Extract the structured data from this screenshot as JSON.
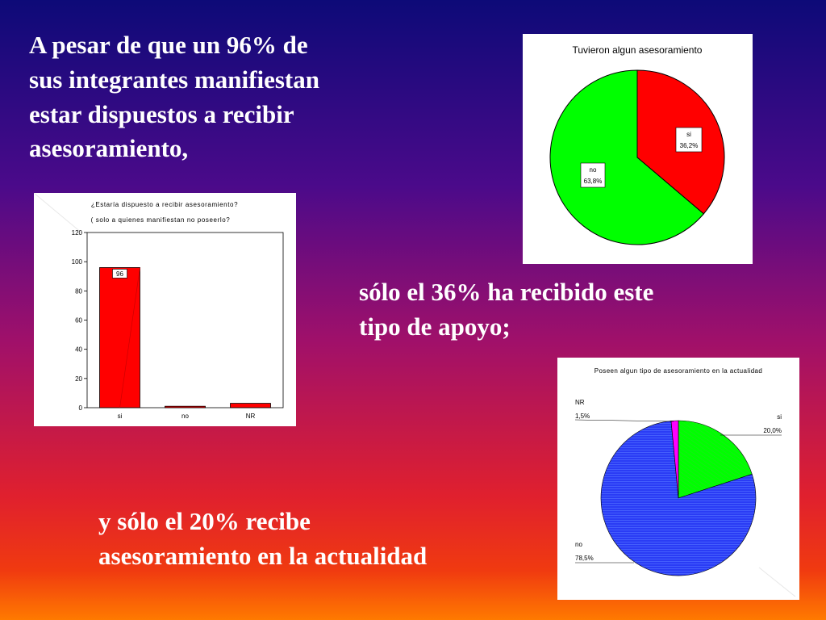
{
  "text_blocks": {
    "block1": [
      "A pesar de que un 96% de",
      "sus integrantes manifiestan",
      "estar dispuestos a recibir",
      "asesoramiento,"
    ],
    "block2": [
      "sólo el 36% ha recibido este",
      "tipo de apoyo;"
    ],
    "block3": [
      "y sólo el 20% recibe",
      "asesoramiento en la actualidad"
    ]
  },
  "colors": {
    "red": "#ff0000",
    "green": "#00ff00",
    "blue": "#2a3cf5",
    "magenta": "#ff00ff"
  },
  "chart_data": [
    {
      "type": "pie",
      "title": "Tuvieron algun asesoramiento",
      "slices": [
        {
          "label": "si",
          "value": 36.2,
          "value_label": "36,2%",
          "color": "#ff0000"
        },
        {
          "label": "no",
          "value": 63.8,
          "value_label": "63,8%",
          "color": "#00ff00"
        }
      ]
    },
    {
      "type": "bar",
      "title": "¿Estaría dispuesto a recibir asesoramiento?",
      "subtitle": "( solo a quienes manifiestan no poseerlo?",
      "categories": [
        "si",
        "no",
        "NR"
      ],
      "values": [
        96,
        1,
        3
      ],
      "data_labels": [
        "96",
        "",
        ""
      ],
      "yticks": [
        "0",
        "20",
        "40",
        "60",
        "80",
        "100",
        "120"
      ],
      "ylim": [
        0,
        120
      ],
      "color": "#ff0000"
    },
    {
      "type": "pie",
      "title": "Poseen algun tipo de asesoramiento en la actualidad",
      "slices": [
        {
          "label": "si",
          "value": 20.0,
          "value_label": "20,0%",
          "color": "#00ff00"
        },
        {
          "label": "no",
          "value": 78.5,
          "value_label": "78,5%",
          "color": "#2a3cf5"
        },
        {
          "label": "NR",
          "value": 1.5,
          "value_label": "1,5%",
          "color": "#ff00ff"
        }
      ]
    }
  ]
}
